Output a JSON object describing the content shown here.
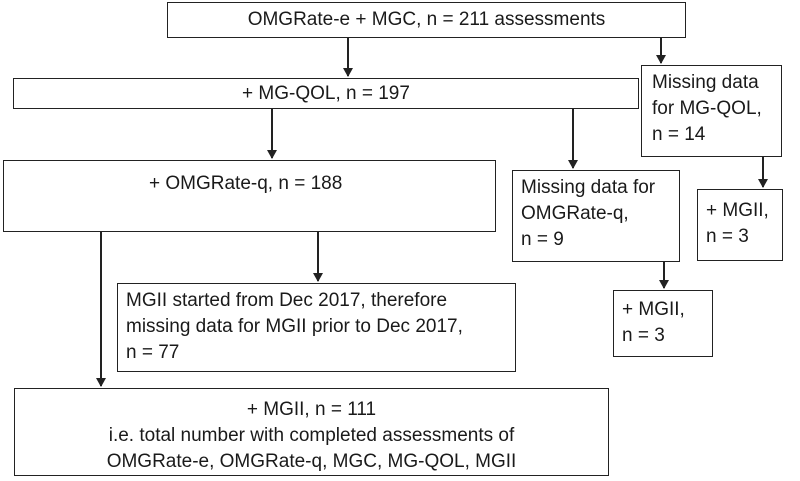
{
  "flowchart": {
    "top": {
      "lines": [
        "OMGRate-e + MGC, n = 211 assessments"
      ]
    },
    "mgqol": {
      "lines": [
        "+   MG-QOL, n = 197"
      ]
    },
    "missing_mgqol": {
      "lines": [
        "Missing data",
        "for MG-QOL,",
        "n = 14"
      ]
    },
    "omgrate_q": {
      "lines": [
        "+ OMGRate-q, n = 188"
      ]
    },
    "missing_omgrate_q": {
      "lines": [
        "Missing data for",
        "OMGRate-q,",
        "n = 9"
      ]
    },
    "mgii_from_missing_mgqol": {
      "lines": [
        "+ MGII,",
        "n = 3"
      ]
    },
    "mgii_started": {
      "lines": [
        "MGII started from Dec 2017, therefore",
        "missing data for MGII prior to Dec 2017,",
        "n = 77"
      ]
    },
    "mgii_from_missing_omgrate_q": {
      "lines": [
        "+ MGII,",
        "n = 3"
      ]
    },
    "final": {
      "lines": [
        "+ MGII, n = 111",
        "i.e. total number with completed assessments of",
        "OMGRate-e, OMGRate-q, MGC, MG-QOL, MGII"
      ]
    }
  }
}
